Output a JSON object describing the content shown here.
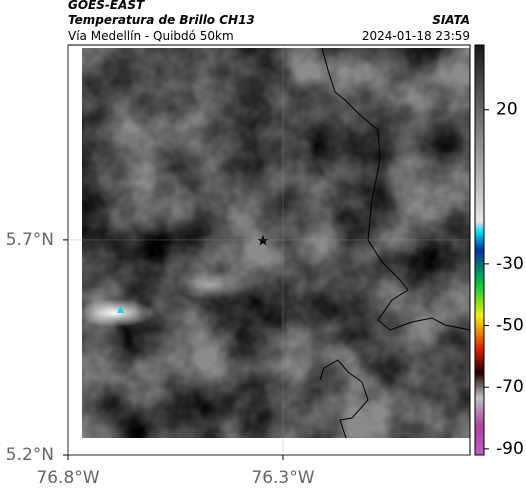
{
  "header": {
    "title": "GOES-EAST",
    "subtitle": "Temperatura de Brillo CH13",
    "location": "Vía Medellín - Quibdó 50km",
    "source": "SIATA",
    "datetime": "2024-01-18 23:59"
  },
  "map": {
    "latlim": [
      5.2,
      6.153
    ],
    "lonlim": [
      -76.8,
      -75.865
    ],
    "latticks": [
      {
        "value": 5.7,
        "label": "5.7°N"
      },
      {
        "value": 5.2,
        "label": "5.2°N"
      }
    ],
    "lonticks": [
      {
        "value": -76.8,
        "label": "76.8°W"
      },
      {
        "value": -76.3,
        "label": "76.3°W"
      }
    ]
  },
  "colorbar": {
    "lim": [
      41,
      -92
    ],
    "ticks": [
      20,
      -30,
      -50,
      -70,
      -90
    ]
  }
}
